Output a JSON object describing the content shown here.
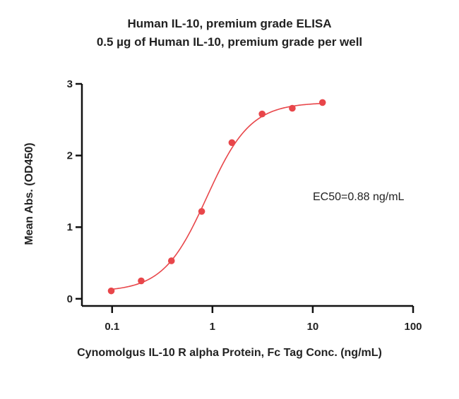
{
  "chart_data": {
    "type": "scatter",
    "title": "Human IL-10, premium grade ELISA",
    "subtitle": "0.5 µg of Human IL-10, premium grade per well",
    "xlabel": "Cynomolgus IL-10 R alpha Protein, Fc Tag  Conc. (ng/mL)",
    "ylabel": "Mean Abs. (OD450)",
    "x_scale": "log",
    "xlim": [
      0.05,
      100
    ],
    "ylim": [
      -0.1,
      3
    ],
    "x_ticks": [
      0.1,
      1,
      10,
      100
    ],
    "x_tick_labels": [
      "0.1",
      "1",
      "10",
      "100"
    ],
    "y_ticks": [
      0,
      1,
      2,
      3
    ],
    "y_tick_labels": [
      "0",
      "1",
      "2",
      "3"
    ],
    "annotation": "EC50=0.88 ng/mL",
    "grid": false,
    "color": "#e8464a",
    "series": [
      {
        "x": [
          0.098,
          0.195,
          0.39,
          0.781,
          1.5625,
          3.125,
          6.25,
          12.5
        ],
        "y": [
          0.11,
          0.25,
          0.53,
          1.22,
          2.18,
          2.58,
          2.66,
          2.74
        ]
      }
    ],
    "curve": {
      "model": "4PL",
      "bottom": 0.1,
      "top": 2.74,
      "ec50": 0.88,
      "hill": 2.0,
      "x_range": [
        0.098,
        12.5
      ]
    }
  }
}
